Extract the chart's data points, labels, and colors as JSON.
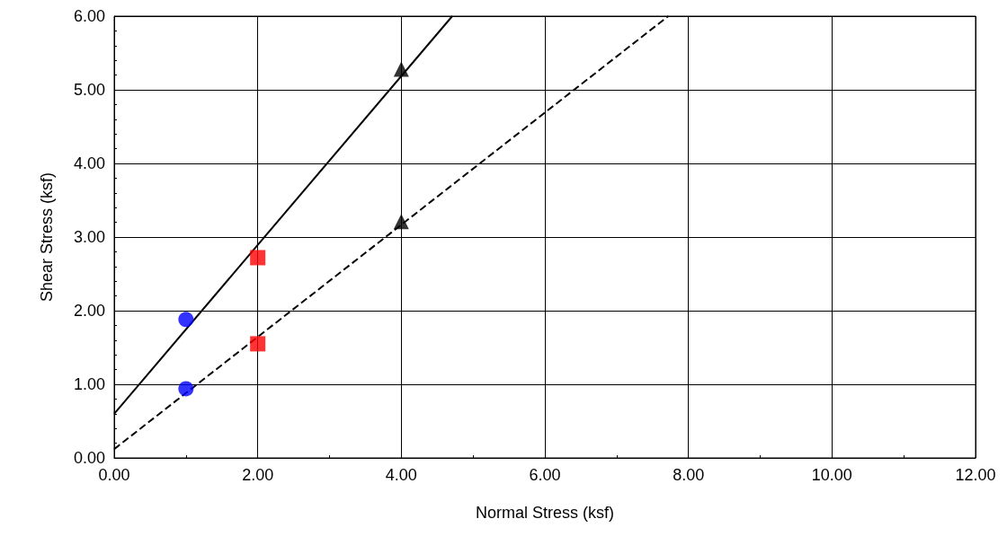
{
  "chart_data": {
    "type": "scatter",
    "xlabel": "Normal Stress (ksf)",
    "ylabel": "Shear Stress (ksf)",
    "xlim": [
      0,
      12
    ],
    "ylim": [
      0,
      6
    ],
    "xticks": [
      {
        "value": 0,
        "label": "0.00"
      },
      {
        "value": 2,
        "label": "2.00"
      },
      {
        "value": 4,
        "label": "4.00"
      },
      {
        "value": 6,
        "label": "6.00"
      },
      {
        "value": 8,
        "label": "8.00"
      },
      {
        "value": 10,
        "label": "10.00"
      },
      {
        "value": 12,
        "label": "12.00"
      }
    ],
    "yticks": [
      {
        "value": 0,
        "label": "0.00"
      },
      {
        "value": 1,
        "label": "1.00"
      },
      {
        "value": 2,
        "label": "2.00"
      },
      {
        "value": 3,
        "label": "3.00"
      },
      {
        "value": 4,
        "label": "4.00"
      },
      {
        "value": 5,
        "label": "5.00"
      },
      {
        "value": 6,
        "label": "6.00"
      }
    ],
    "grid": true,
    "series": [
      {
        "x": [
          1
        ],
        "values": [
          1.88
        ],
        "color": "#0000ff",
        "marker": "circle"
      },
      {
        "x": [
          2
        ],
        "values": [
          2.72
        ],
        "color": "#ff0000",
        "marker": "square"
      },
      {
        "x": [
          4
        ],
        "values": [
          5.28
        ],
        "color": "#000000",
        "marker": "triangle"
      },
      {
        "x": [
          1
        ],
        "values": [
          0.94
        ],
        "color": "#0000ff",
        "marker": "circle"
      },
      {
        "x": [
          2
        ],
        "values": [
          1.55
        ],
        "color": "#ff0000",
        "marker": "square"
      },
      {
        "x": [
          4
        ],
        "values": [
          3.21
        ],
        "color": "#000000",
        "marker": "triangle"
      },
      {
        "type": "line",
        "x": [
          0,
          4.71
        ],
        "values": [
          0.6,
          6
        ],
        "color": "#000000",
        "line_style": "solid",
        "marker": "none"
      },
      {
        "type": "line",
        "x": [
          0,
          7.72
        ],
        "values": [
          0.12,
          6
        ],
        "color": "#000000",
        "line_style": "dashed",
        "marker": "none"
      }
    ]
  }
}
